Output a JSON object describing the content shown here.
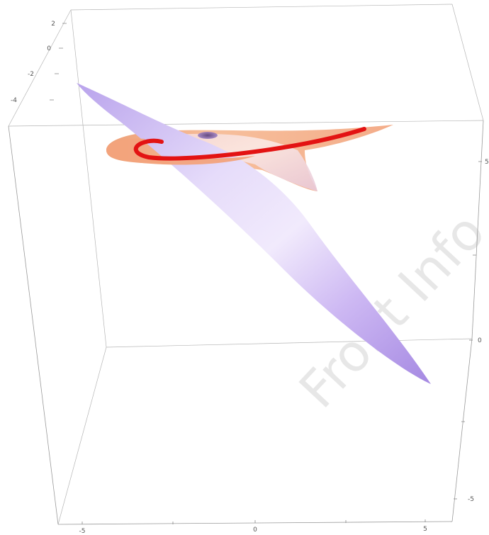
{
  "figure": {
    "watermark": "Front Info",
    "axes": {
      "top_left_vertical": {
        "tick_labels": [
          "2",
          "0",
          "-2",
          "-4"
        ]
      },
      "right_vertical": {
        "tick_labels": [
          "5",
          "0",
          "-5"
        ]
      },
      "bottom_horizontal": {
        "tick_labels": [
          "-5",
          "0",
          "5"
        ]
      }
    },
    "surfaces": [
      {
        "role": "lavender-sheet",
        "color": "#c9b6f2"
      },
      {
        "role": "peach-sheet",
        "color": "#f5b08a"
      }
    ],
    "curve": {
      "color": "#e01010"
    },
    "colors": {
      "box_lines": "#9a9a9a",
      "background": "#ffffff"
    }
  }
}
